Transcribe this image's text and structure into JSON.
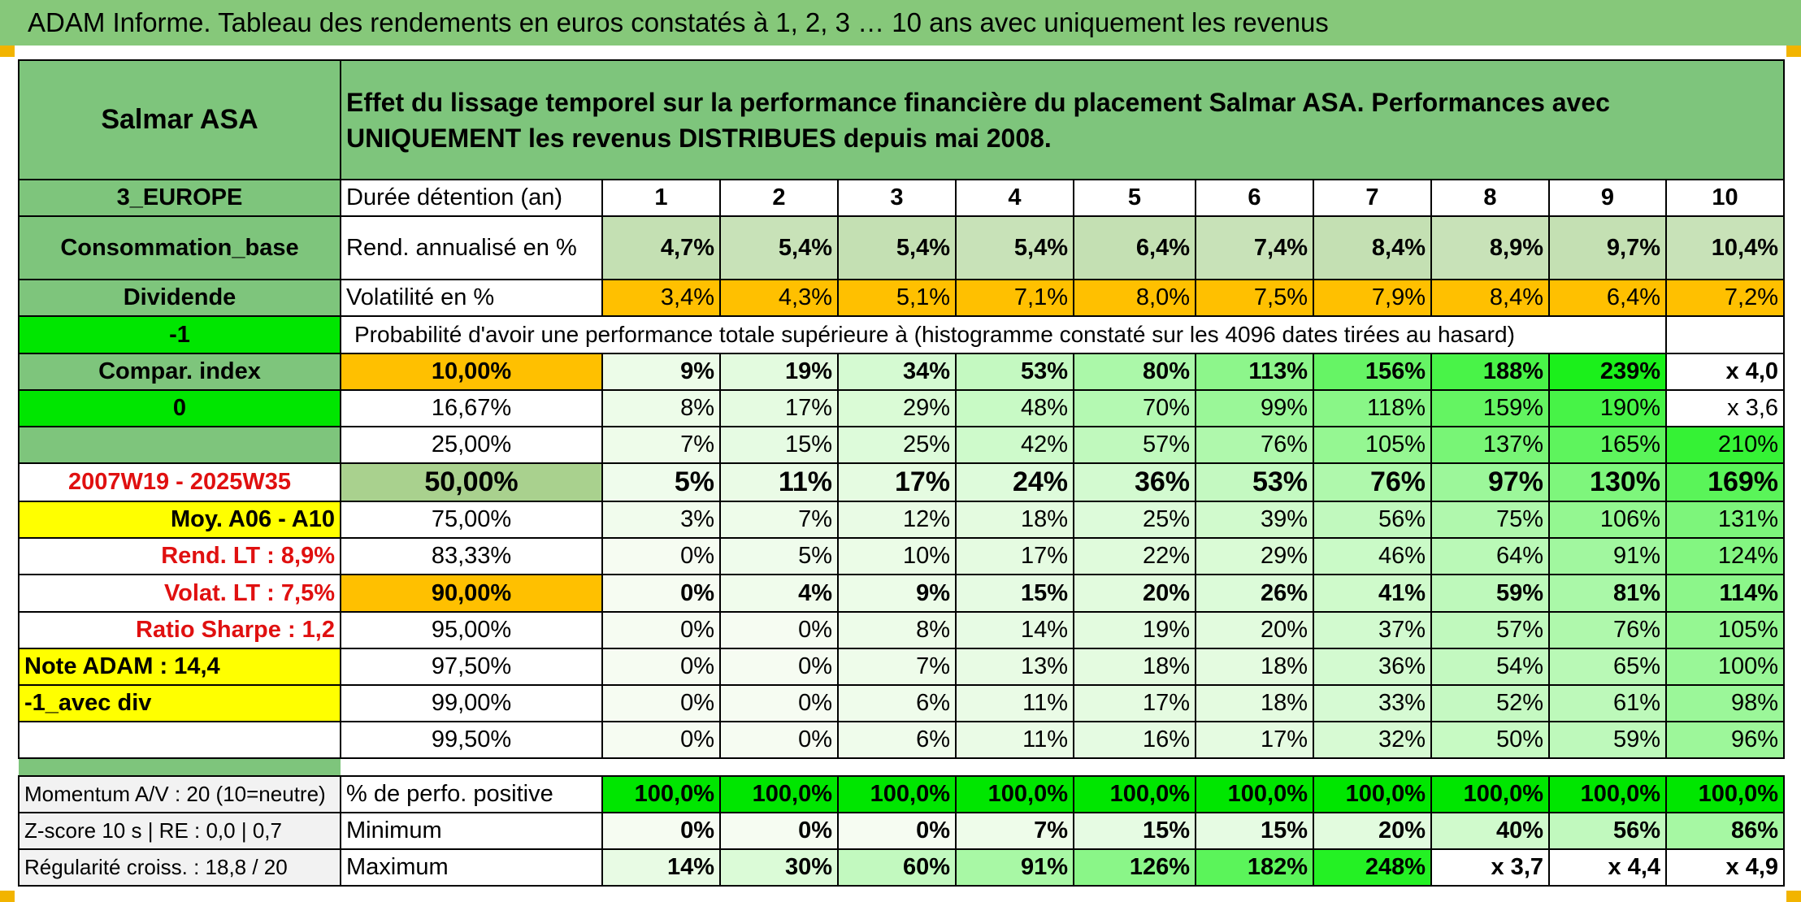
{
  "title": "ADAM Informe. Tableau des rendements en euros constatés à 1, 2, 3 … 10 ans avec uniquement les revenus",
  "header": {
    "name": "Salmar ASA",
    "description": "Effet du lissage temporel sur la performance financière du placement Salmar ASA. Performances avec UNIQUEMENT les revenus DISTRIBUES depuis mai 2008."
  },
  "left": {
    "region": "3_EUROPE",
    "sector": "Consommation_base",
    "type": "Dividende",
    "code1": "-1",
    "compar": "Compar. index",
    "code2": "0",
    "blank": "",
    "period": "2007W19 - 2025W35",
    "moy": "Moy. A06 - A10",
    "rend_lt": "Rend. LT :   8,9%",
    "volat_lt": "Volat. LT :   7,5%",
    "sharpe": "Ratio Sharpe :   1,2",
    "note": "Note ADAM : 14,4",
    "avec_div": "-1_avec div",
    "momentum": "Momentum A/V : 20 (10=neutre)",
    "zscore": "Z-score 10 s | RE : 0,0 | 0,7",
    "regularite": "Régularité croiss. : 18,8 / 20"
  },
  "duree_label": "Durée détention (an)",
  "years": [
    "1",
    "2",
    "3",
    "4",
    "5",
    "6",
    "7",
    "8",
    "9",
    "10"
  ],
  "rend_label": "Rend. annualisé en %",
  "rend": [
    "4,7%",
    "5,4%",
    "5,4%",
    "5,4%",
    "6,4%",
    "7,4%",
    "8,4%",
    "8,9%",
    "9,7%",
    "10,4%"
  ],
  "vol_label": "Volatilité en %",
  "vol": [
    "3,4%",
    "4,3%",
    "5,1%",
    "7,1%",
    "8,0%",
    "7,5%",
    "7,9%",
    "8,4%",
    "6,4%",
    "7,2%"
  ],
  "proba_label": "Probabilité d'avoir une performance totale supérieure à (histogramme constaté sur les 4096 dates tirées au hasard)",
  "percentiles": [
    {
      "p": "10,00%",
      "v": [
        "9%",
        "19%",
        "34%",
        "53%",
        "80%",
        "113%",
        "156%",
        "188%",
        "239%",
        "x 4,0"
      ]
    },
    {
      "p": "16,67%",
      "v": [
        "8%",
        "17%",
        "29%",
        "48%",
        "70%",
        "99%",
        "118%",
        "159%",
        "190%",
        "x 3,6"
      ]
    },
    {
      "p": "25,00%",
      "v": [
        "7%",
        "15%",
        "25%",
        "42%",
        "57%",
        "76%",
        "105%",
        "137%",
        "165%",
        "210%"
      ]
    },
    {
      "p": "50,00%",
      "v": [
        "5%",
        "11%",
        "17%",
        "24%",
        "36%",
        "53%",
        "76%",
        "97%",
        "130%",
        "169%"
      ]
    },
    {
      "p": "75,00%",
      "v": [
        "3%",
        "7%",
        "12%",
        "18%",
        "25%",
        "39%",
        "56%",
        "75%",
        "106%",
        "131%"
      ]
    },
    {
      "p": "83,33%",
      "v": [
        "0%",
        "5%",
        "10%",
        "17%",
        "22%",
        "29%",
        "46%",
        "64%",
        "91%",
        "124%"
      ]
    },
    {
      "p": "90,00%",
      "v": [
        "0%",
        "4%",
        "9%",
        "15%",
        "20%",
        "26%",
        "41%",
        "59%",
        "81%",
        "114%"
      ]
    },
    {
      "p": "95,00%",
      "v": [
        "0%",
        "0%",
        "8%",
        "14%",
        "19%",
        "20%",
        "37%",
        "57%",
        "76%",
        "105%"
      ]
    },
    {
      "p": "97,50%",
      "v": [
        "0%",
        "0%",
        "7%",
        "13%",
        "18%",
        "18%",
        "36%",
        "54%",
        "65%",
        "100%"
      ]
    },
    {
      "p": "99,00%",
      "v": [
        "0%",
        "0%",
        "6%",
        "11%",
        "17%",
        "18%",
        "33%",
        "52%",
        "61%",
        "98%"
      ]
    },
    {
      "p": "99,50%",
      "v": [
        "0%",
        "0%",
        "6%",
        "11%",
        "16%",
        "17%",
        "32%",
        "50%",
        "59%",
        "96%"
      ]
    }
  ],
  "positive_label": "% de perfo. positive",
  "positive": [
    "100,0%",
    "100,0%",
    "100,0%",
    "100,0%",
    "100,0%",
    "100,0%",
    "100,0%",
    "100,0%",
    "100,0%",
    "100,0%"
  ],
  "min_label": "Minimum",
  "minimum": [
    "0%",
    "0%",
    "0%",
    "7%",
    "15%",
    "15%",
    "20%",
    "40%",
    "56%",
    "86%"
  ],
  "max_label": "Maximum",
  "maximum": [
    "14%",
    "30%",
    "60%",
    "91%",
    "126%",
    "182%",
    "248%",
    "x 3,7",
    "x 4,4",
    "x 4,9"
  ],
  "colors": {
    "title_green": "#86c87a",
    "label_green": "#7ec57c",
    "bright_green": "#00e600",
    "orange": "#ffc000",
    "yellow": "#ffff00",
    "red_text": "#e01010"
  }
}
